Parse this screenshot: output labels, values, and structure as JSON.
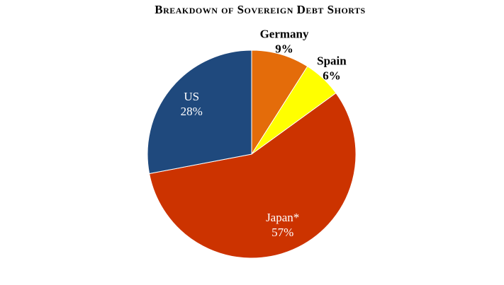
{
  "chart_data": {
    "type": "pie",
    "title": "Breakdown of Sovereign Debt Shorts",
    "categories": [
      "Germany",
      "Spain",
      "Japan*",
      "US"
    ],
    "values": [
      9,
      6,
      57,
      28
    ],
    "value_labels": [
      "9%",
      "6%",
      "57%",
      "28%"
    ],
    "colors": [
      "#e46c0a",
      "#ffff00",
      "#cc3300",
      "#1f497d"
    ]
  }
}
